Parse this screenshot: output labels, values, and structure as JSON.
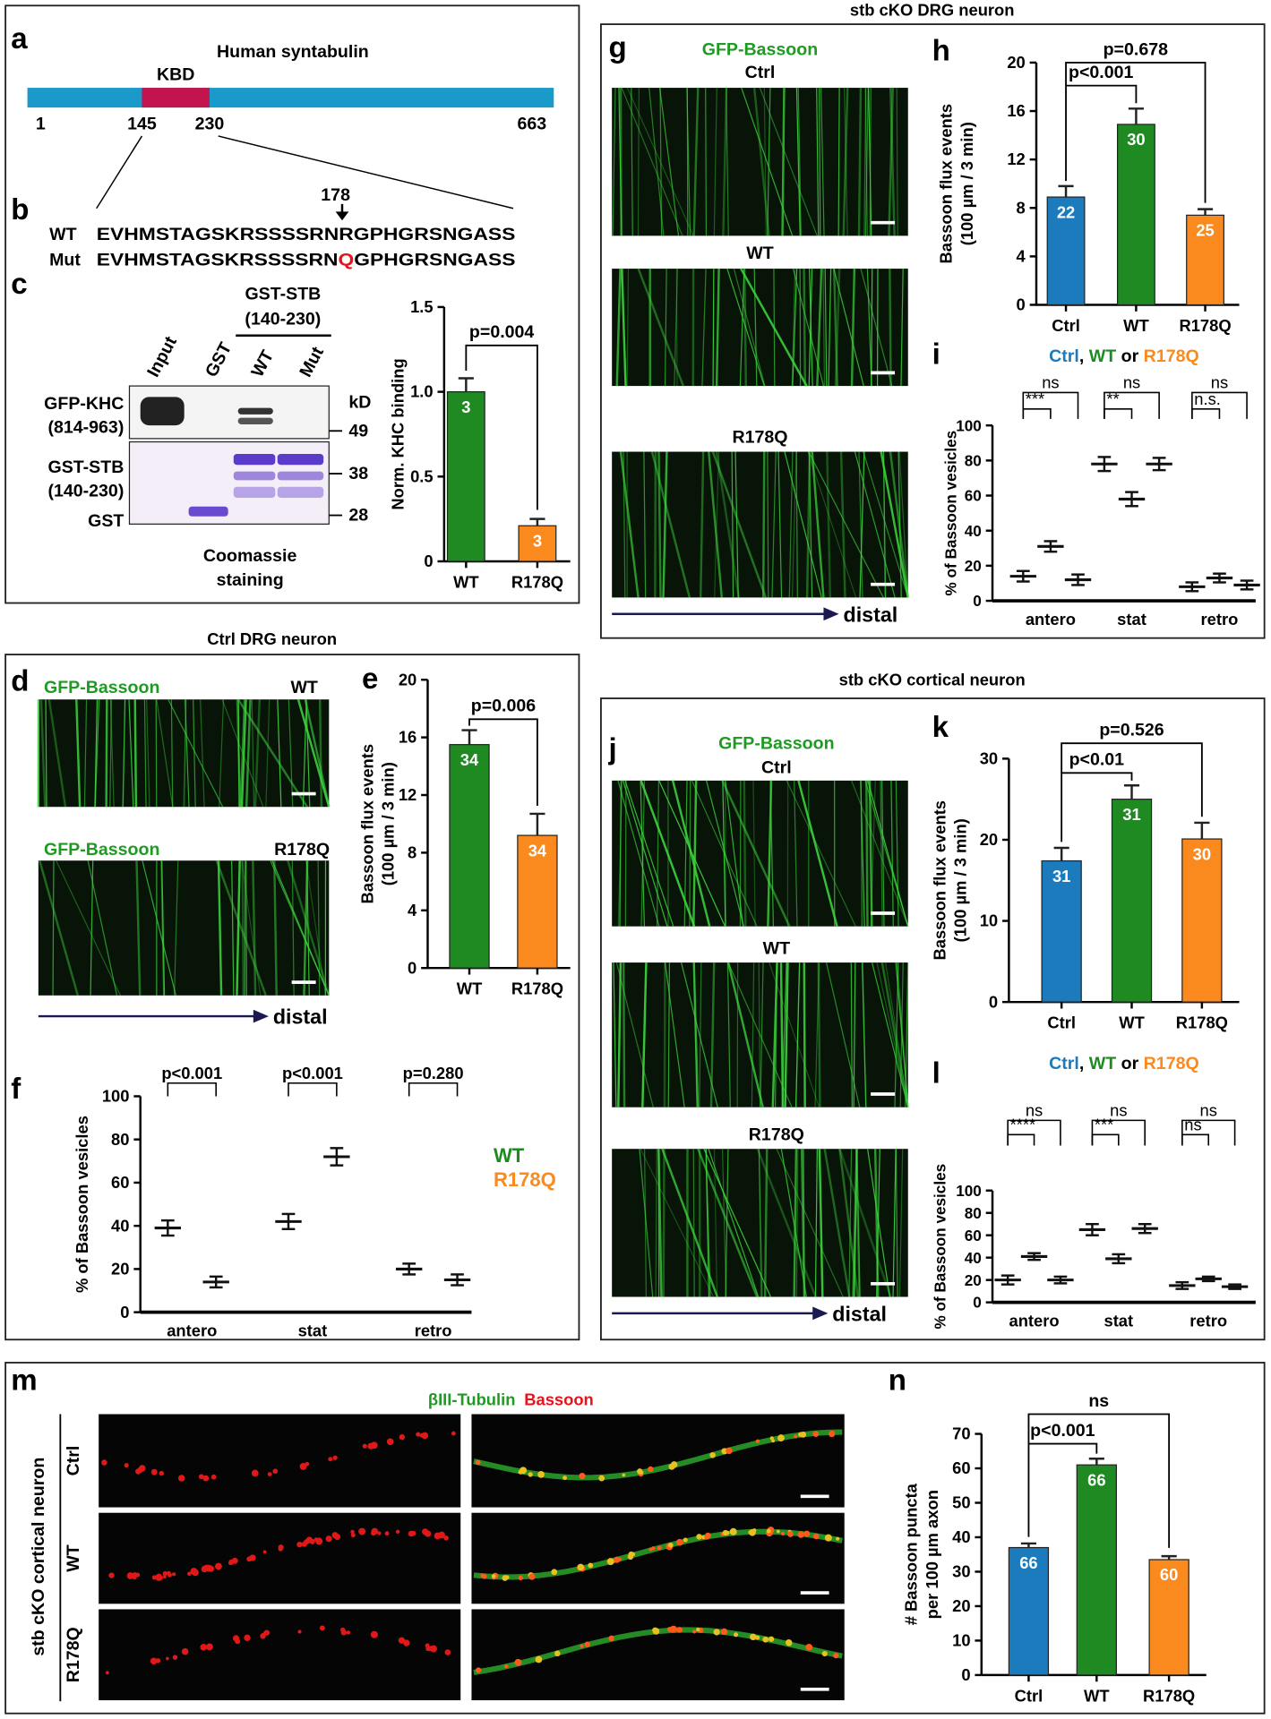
{
  "panels": {
    "a": {
      "label": "a",
      "title": "Human syntabulin",
      "domain": "KBD",
      "residues": [
        1,
        145,
        230,
        663
      ]
    },
    "b": {
      "label": "b",
      "site": 178,
      "rows": [
        {
          "name": "WT",
          "sequence": "EVHMSTAGSKRSSSSRNRGPHGRSNGASS"
        },
        {
          "name": "Mut",
          "before": "EVHMSTAGSKRSSSSRN",
          "residue": "Q",
          "after": "GPHGRSNGASS"
        }
      ]
    },
    "c": {
      "label": "c",
      "construct": [
        "GST-STB",
        "(140-230)"
      ],
      "lanes": [
        "Input",
        "GST",
        "WT",
        "Mut"
      ],
      "blot_labels": [
        "GFP-KHC",
        "(814-963)",
        "GST-STB",
        "(140-230)",
        "GST"
      ],
      "unit": "kD",
      "markers": [
        49,
        38,
        28
      ],
      "stain": [
        "Coomassie",
        "staining"
      ],
      "chart": {
        "type": "bar",
        "ylabel": [
          "Norm. KHC binding"
        ],
        "categories": [
          "WT",
          "R178Q"
        ],
        "colors": [
          "#1f8a22",
          "#fb8a1e"
        ],
        "values": [
          1.0,
          0.21
        ],
        "errors": [
          0.08,
          0.04
        ],
        "n": [
          3,
          3
        ],
        "ylim": [
          0,
          1.5
        ],
        "yticks": [
          0,
          0.5,
          {
            "value": 1,
            "label": "1.0"
          },
          1.5
        ],
        "comparisons": [
          "p=0.004"
        ]
      }
    },
    "d": {
      "label": "d",
      "title": "Ctrl DRG neuron",
      "images": [
        {
          "reporter": "GFP-Bassoon",
          "condition": "WT"
        },
        {
          "reporter": "GFP-Bassoon",
          "condition": "R178Q"
        }
      ],
      "direction": "distal"
    },
    "e": {
      "label": "e",
      "chart": {
        "type": "bar",
        "ylabel": [
          "Bassoon flux events",
          "(100 µm / 3 min)"
        ],
        "categories": [
          "WT",
          "R178Q"
        ],
        "colors": [
          "#1f8a22",
          "#fb8a1e"
        ],
        "values": [
          15.5,
          9.2
        ],
        "errors": [
          1.0,
          1.5
        ],
        "n": [
          34,
          34
        ],
        "ylim": [
          0,
          20
        ],
        "yticks": [
          0,
          4,
          8,
          12,
          16,
          20
        ],
        "comparisons": [
          "p=0.006"
        ]
      }
    },
    "f": {
      "label": "f",
      "chart": {
        "type": "dot",
        "ylabel": [
          "% of Bassoon vesicles"
        ],
        "categories": [
          "antero",
          "stat",
          "retro"
        ],
        "series": [
          {
            "name": "WT",
            "color": "#1f8a22",
            "means": [
              39,
              42,
              20
            ],
            "errors": [
              3.5,
              3.5,
              2.5
            ]
          },
          {
            "name": "R178Q",
            "color": "#fb8a1e",
            "means": [
              14,
              72,
              15
            ],
            "errors": [
              2.5,
              4,
              2.5
            ]
          }
        ],
        "ylim": [
          0,
          100
        ],
        "yticks": [
          0,
          20,
          40,
          60,
          80,
          100
        ],
        "comparisons": [
          "p<0.001",
          "p<0.001",
          "p=0.280"
        ]
      }
    },
    "g": {
      "label": "g",
      "title": "stb cKO DRG neuron",
      "reporter": "GFP-Bassoon",
      "conditions": [
        "Ctrl",
        "WT",
        "R178Q"
      ],
      "direction": "distal"
    },
    "h": {
      "label": "h",
      "chart": {
        "type": "bar",
        "ylabel": [
          "Bassoon flux events",
          "(100 µm / 3 min)"
        ],
        "categories": [
          "Ctrl",
          "WT",
          "R178Q"
        ],
        "colors": [
          "#1b7bbd",
          "#1f8a22",
          "#fb8a1e"
        ],
        "values": [
          8.9,
          14.9,
          7.4
        ],
        "errors": [
          0.9,
          1.3,
          0.5
        ],
        "n": [
          22,
          30,
          25
        ],
        "ylim": [
          0,
          20
        ],
        "yticks": [
          0,
          4,
          8,
          12,
          16,
          20
        ],
        "comparisons": [
          "p=0.678",
          "p<0.001"
        ]
      }
    },
    "i": {
      "label": "i",
      "chart": {
        "type": "dot",
        "legend_title": [
          "Ctrl",
          ", ",
          "WT",
          " or ",
          "R178Q"
        ],
        "ylabel": [
          "% of Bassoon vesicles"
        ],
        "categories": [
          "antero",
          "stat",
          "retro"
        ],
        "series": [
          {
            "name": "Ctrl",
            "color": "#1b7bbd",
            "means": [
              14,
              78,
              8
            ],
            "errors": [
              3,
              4,
              2.5
            ]
          },
          {
            "name": "WT",
            "color": "#1f8a22",
            "means": [
              31,
              58,
              13
            ],
            "errors": [
              3,
              4,
              2.5
            ]
          },
          {
            "name": "R178Q",
            "color": "#fb8a1e",
            "means": [
              12,
              78,
              9
            ],
            "errors": [
              3,
              3.5,
              2.5
            ]
          }
        ],
        "ylim": [
          0,
          100
        ],
        "yticks": [
          0,
          20,
          40,
          60,
          80,
          100
        ],
        "comparisons": [
          "ns",
          "***",
          "ns",
          "**",
          "ns",
          "n.s."
        ]
      }
    },
    "j": {
      "label": "j",
      "title": "stb cKO cortical neuron",
      "reporter": "GFP-Bassoon",
      "conditions": [
        "Ctrl",
        "WT",
        "R178Q"
      ],
      "direction": "distal"
    },
    "k": {
      "label": "k",
      "chart": {
        "type": "bar",
        "ylabel": [
          "Bassoon flux events",
          "(100 µm / 3 min)"
        ],
        "categories": [
          "Ctrl",
          "WT",
          "R178Q"
        ],
        "colors": [
          "#1b7bbd",
          "#1f8a22",
          "#fb8a1e"
        ],
        "values": [
          17.4,
          25,
          20.1
        ],
        "errors": [
          1.6,
          1.7,
          2
        ],
        "n": [
          31,
          31,
          30
        ],
        "ylim": [
          0,
          30
        ],
        "yticks": [
          0,
          10,
          20,
          30
        ],
        "comparisons": [
          "p=0.526",
          "p<0.01"
        ]
      }
    },
    "l": {
      "label": "l",
      "chart": {
        "type": "dot",
        "legend_title": [
          "Ctrl",
          ", ",
          "WT",
          " or ",
          "R178Q"
        ],
        "ylabel": [
          "% of Bassoon vesicles"
        ],
        "categories": [
          "antero",
          "stat",
          "retro"
        ],
        "series": [
          {
            "name": "Ctrl",
            "color": "#1b7bbd",
            "means": [
              20,
              65,
              15
            ],
            "errors": [
              4,
              5,
              3
            ]
          },
          {
            "name": "WT",
            "color": "#1f8a22",
            "means": [
              41,
              39,
              21
            ],
            "errors": [
              3,
              4,
              2
            ]
          },
          {
            "name": "R178Q",
            "color": "#fb8a1e",
            "means": [
              20,
              66,
              14
            ],
            "errors": [
              3,
              4,
              2
            ]
          }
        ],
        "ylim": [
          0,
          100
        ],
        "yticks": [
          0,
          20,
          40,
          60,
          80,
          100
        ],
        "comparisons": [
          "ns",
          "****",
          "ns",
          "***",
          "ns",
          "ns"
        ]
      }
    },
    "m": {
      "label": "m",
      "stains": [
        "βIII-Tubulin",
        "Bassoon"
      ],
      "side_label": "stb cKO cortical neuron",
      "conditions": [
        "Ctrl",
        "WT",
        "R178Q"
      ]
    },
    "n": {
      "label": "n",
      "chart": {
        "type": "bar",
        "ylabel": [
          "# Bassoon puncta",
          "per 100 µm axon"
        ],
        "categories": [
          "Ctrl",
          "WT",
          "R178Q"
        ],
        "colors": [
          "#1b7bbd",
          "#1f8a22",
          "#fb8a1e"
        ],
        "values": [
          37,
          61,
          33.5
        ],
        "errors": [
          1.2,
          1.8,
          1
        ],
        "n": [
          66,
          66,
          60
        ],
        "ylim": [
          0,
          70
        ],
        "yticks": [
          0,
          10,
          20,
          30,
          40,
          50,
          60,
          70
        ],
        "comparisons": [
          "ns",
          "p<0.001"
        ]
      }
    }
  }
}
